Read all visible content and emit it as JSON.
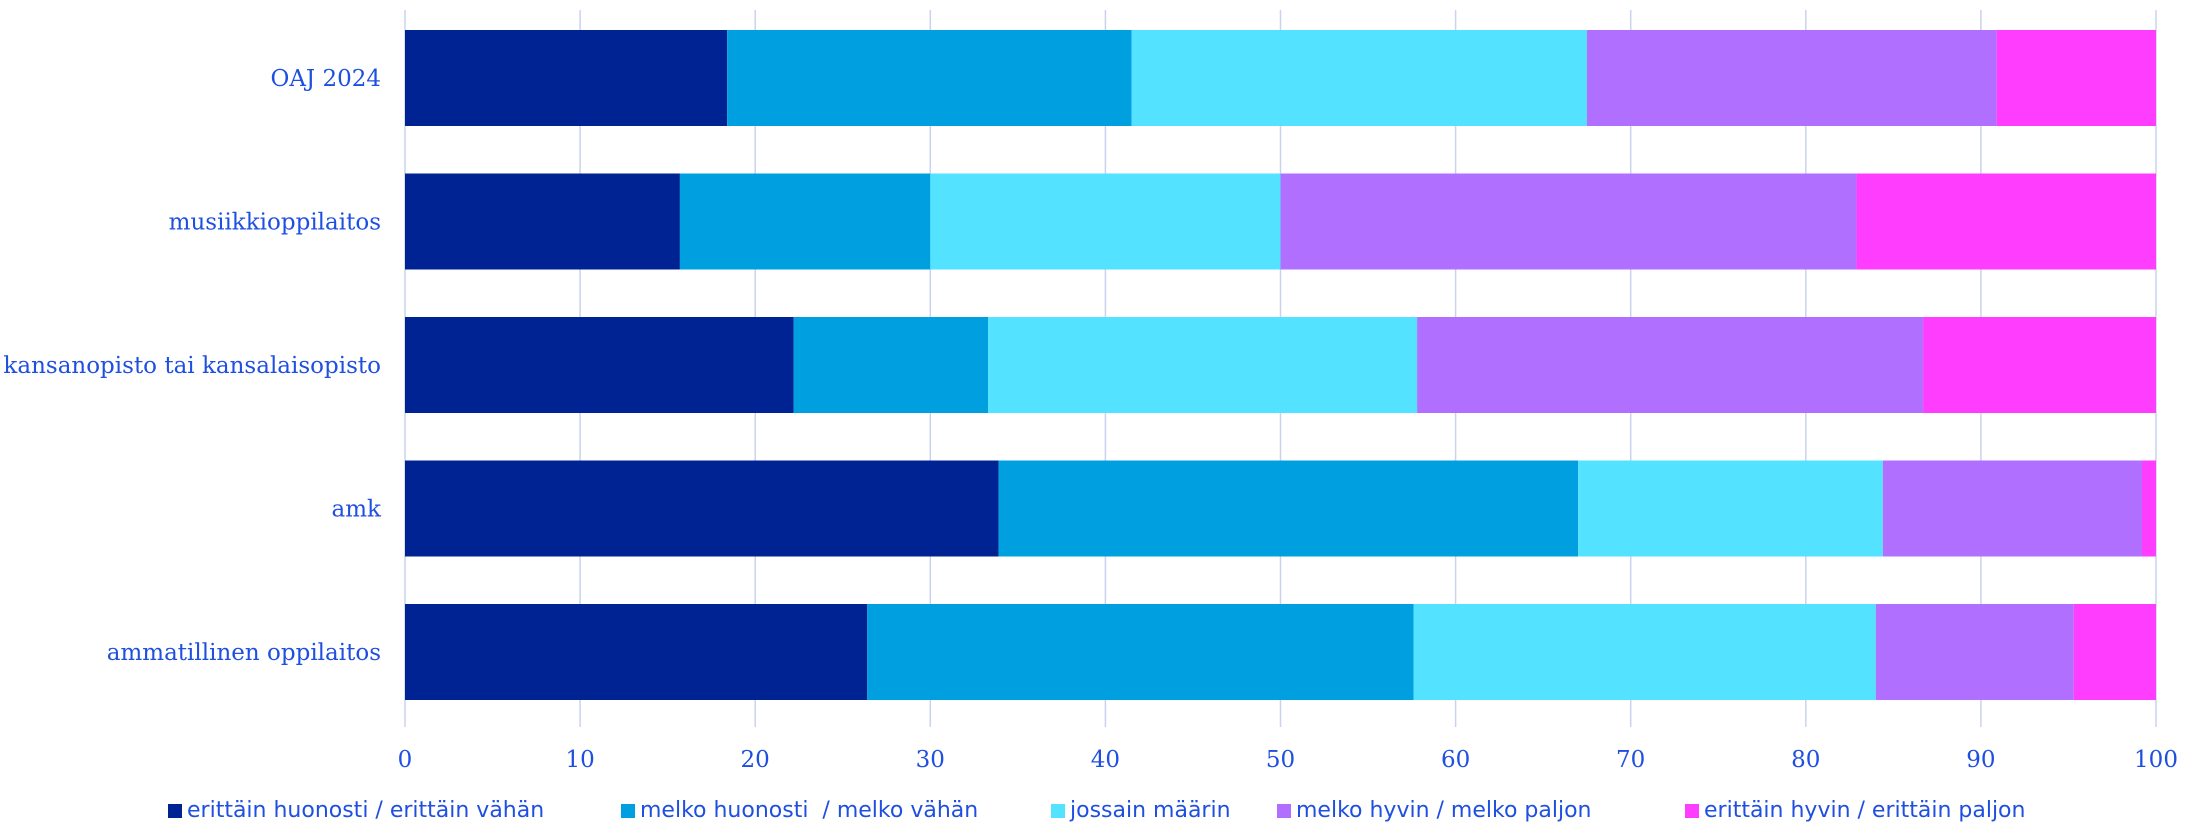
{
  "chart_data": {
    "type": "bar",
    "orientation": "horizontal",
    "stacked": true,
    "categories": [
      "OAJ 2024",
      "musiikkioppilaitos",
      "kansanopisto tai kansalaisopisto",
      "amk",
      "ammatillinen oppilaitos"
    ],
    "xlim": [
      0,
      100
    ],
    "xticks": [
      "0",
      "10",
      "20",
      "30",
      "40",
      "50",
      "60",
      "70",
      "80",
      "90",
      "100"
    ],
    "grid": "vertical",
    "legend_position": "bottom",
    "series": [
      {
        "name": "erittäin huonosti / erittäin vähän",
        "color": "#002394",
        "values": [
          18.4,
          15.7,
          22.2,
          33.9,
          26.4
        ]
      },
      {
        "name": "melko huonosti  / melko vähän",
        "color": "#00a0e0",
        "values": [
          23.1,
          14.3,
          11.1,
          33.1,
          31.2
        ]
      },
      {
        "name": "jossain määrin",
        "color": "#53e2ff",
        "values": [
          26.0,
          20.0,
          24.5,
          17.4,
          26.4
        ]
      },
      {
        "name": "melko hyvin / melko paljon",
        "color": "#b16fff",
        "values": [
          23.4,
          32.9,
          28.9,
          14.8,
          11.3
        ]
      },
      {
        "name": "erittäin hyvin / erittäin paljon",
        "color": "#ff3dff",
        "values": [
          9.1,
          17.1,
          13.3,
          0.8,
          4.7
        ]
      }
    ]
  }
}
